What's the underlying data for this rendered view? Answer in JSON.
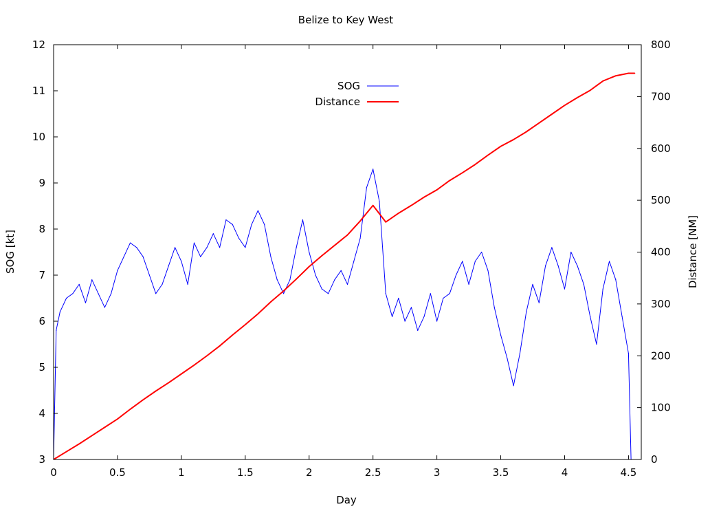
{
  "chart_data": {
    "type": "line",
    "title": "Belize to Key West",
    "xlabel": "Day",
    "ylabel": "SOG [kt]",
    "y2label": "Distance [NM]",
    "xlim": [
      0,
      4.6
    ],
    "ylim": [
      3,
      12
    ],
    "y2lim": [
      0,
      800
    ],
    "xticks": [
      0,
      0.5,
      1,
      1.5,
      2,
      2.5,
      3,
      3.5,
      4,
      4.5
    ],
    "xtick_labels": [
      "0",
      "0.5",
      "1",
      "1.5",
      "2",
      "2.5",
      "3",
      "3.5",
      "4",
      "4.5"
    ],
    "yticks": [
      3,
      4,
      5,
      6,
      7,
      8,
      9,
      10,
      11,
      12
    ],
    "ytick_labels": [
      "3",
      "4",
      "5",
      "6",
      "7",
      "8",
      "9",
      "10",
      "11",
      "12"
    ],
    "y2ticks": [
      0,
      100,
      200,
      300,
      400,
      500,
      600,
      700,
      800
    ],
    "y2tick_labels": [
      "0",
      "100",
      "200",
      "300",
      "400",
      "500",
      "600",
      "700",
      "800"
    ],
    "grid": false,
    "legend_position": "top-center",
    "series": [
      {
        "name": "SOG",
        "axis": "left",
        "color": "#0000ff",
        "x": [
          0,
          0.02,
          0.05,
          0.1,
          0.15,
          0.2,
          0.25,
          0.3,
          0.35,
          0.4,
          0.45,
          0.5,
          0.55,
          0.6,
          0.65,
          0.7,
          0.75,
          0.8,
          0.85,
          0.9,
          0.95,
          1.0,
          1.05,
          1.1,
          1.15,
          1.2,
          1.25,
          1.3,
          1.35,
          1.4,
          1.45,
          1.5,
          1.55,
          1.6,
          1.65,
          1.7,
          1.75,
          1.8,
          1.85,
          1.9,
          1.95,
          2.0,
          2.05,
          2.1,
          2.15,
          2.2,
          2.25,
          2.3,
          2.35,
          2.4,
          2.45,
          2.5,
          2.55,
          2.6,
          2.65,
          2.7,
          2.75,
          2.8,
          2.85,
          2.9,
          2.95,
          3.0,
          3.05,
          3.1,
          3.15,
          3.2,
          3.25,
          3.3,
          3.35,
          3.4,
          3.45,
          3.5,
          3.55,
          3.6,
          3.65,
          3.7,
          3.75,
          3.8,
          3.85,
          3.9,
          3.95,
          4.0,
          4.05,
          4.1,
          4.15,
          4.2,
          4.25,
          4.3,
          4.35,
          4.4,
          4.45,
          4.5,
          4.52
        ],
        "y": [
          3.0,
          5.8,
          6.2,
          6.5,
          6.6,
          6.8,
          6.4,
          6.9,
          6.6,
          6.3,
          6.6,
          7.1,
          7.4,
          7.7,
          7.6,
          7.4,
          7.0,
          6.6,
          6.8,
          7.2,
          7.6,
          7.3,
          6.8,
          7.7,
          7.4,
          7.6,
          7.9,
          7.6,
          8.2,
          8.1,
          7.8,
          7.6,
          8.1,
          8.4,
          8.1,
          7.4,
          6.9,
          6.6,
          6.9,
          7.6,
          8.2,
          7.5,
          7.0,
          6.7,
          6.6,
          6.9,
          7.1,
          6.8,
          7.3,
          7.8,
          8.9,
          9.3,
          8.6,
          6.6,
          6.1,
          6.5,
          6.0,
          6.3,
          5.8,
          6.1,
          6.6,
          6.0,
          6.5,
          6.6,
          7.0,
          7.3,
          6.8,
          7.3,
          7.5,
          7.1,
          6.3,
          5.7,
          5.2,
          4.6,
          5.3,
          6.2,
          6.8,
          6.4,
          7.2,
          7.6,
          7.2,
          6.7,
          7.5,
          7.2,
          6.8,
          6.1,
          5.5,
          6.7,
          7.3,
          6.9,
          6.1,
          5.3,
          3.0
        ]
      },
      {
        "name": "Distance",
        "axis": "right",
        "color": "#ff0000",
        "x": [
          0,
          0.1,
          0.2,
          0.3,
          0.4,
          0.5,
          0.6,
          0.7,
          0.8,
          0.9,
          1.0,
          1.1,
          1.2,
          1.3,
          1.4,
          1.5,
          1.6,
          1.7,
          1.8,
          1.9,
          2.0,
          2.1,
          2.2,
          2.3,
          2.4,
          2.5,
          2.6,
          2.7,
          2.8,
          2.9,
          3.0,
          3.1,
          3.2,
          3.3,
          3.4,
          3.5,
          3.6,
          3.7,
          3.8,
          3.9,
          4.0,
          4.1,
          4.2,
          4.3,
          4.4,
          4.5,
          4.55
        ],
        "y": [
          0,
          15,
          30,
          46,
          62,
          78,
          97,
          115,
          132,
          148,
          165,
          182,
          200,
          219,
          240,
          260,
          281,
          304,
          325,
          348,
          372,
          393,
          413,
          433,
          460,
          490,
          458,
          475,
          490,
          506,
          520,
          538,
          553,
          569,
          587,
          604,
          617,
          632,
          649,
          666,
          683,
          698,
          712,
          730,
          740,
          745,
          745
        ]
      }
    ]
  }
}
